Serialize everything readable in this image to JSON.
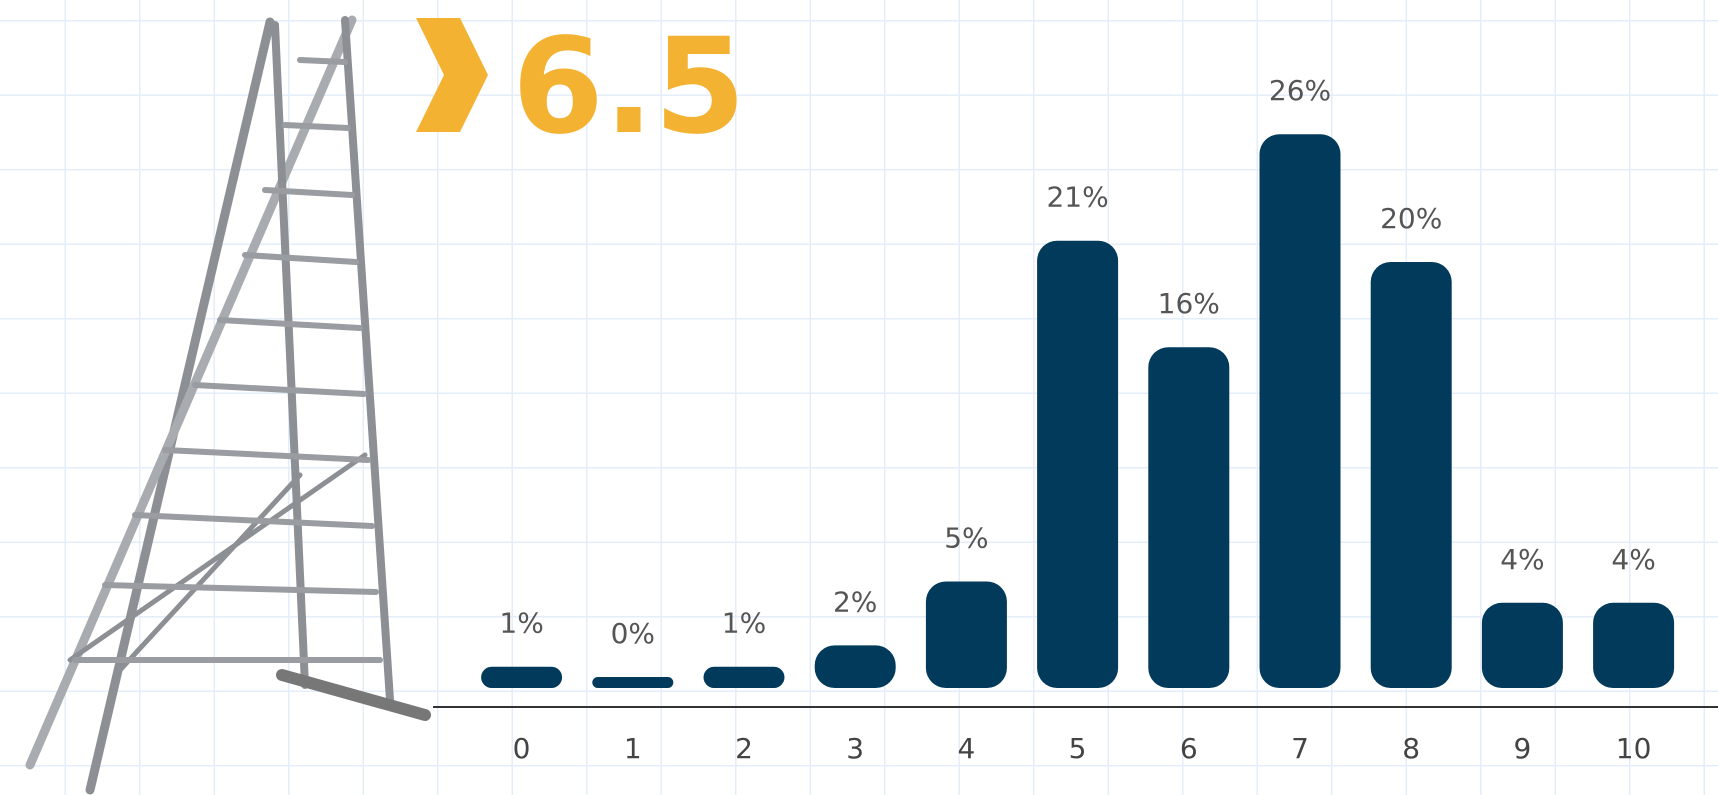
{
  "chart_data": {
    "type": "bar",
    "title": "6.5",
    "categories": [
      "0",
      "1",
      "2",
      "3",
      "4",
      "5",
      "6",
      "7",
      "8",
      "9",
      "10"
    ],
    "values": [
      1,
      0,
      1,
      2,
      5,
      21,
      16,
      26,
      20,
      4,
      4
    ],
    "value_labels": [
      "1%",
      "0%",
      "1%",
      "2%",
      "5%",
      "21%",
      "16%",
      "26%",
      "20%",
      "4%",
      "4%"
    ],
    "color": "#023a5c"
  }
}
